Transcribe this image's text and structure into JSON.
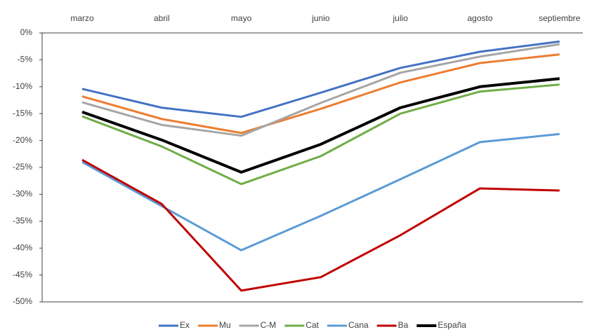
{
  "chart_data": {
    "type": "line",
    "categories": [
      "marzo",
      "abril",
      "mayo",
      "junio",
      "julio",
      "agosto",
      "septiembre"
    ],
    "series": [
      {
        "name": "Ex",
        "color": "#4472c4",
        "values": [
          -10.4,
          -13.9,
          -15.6,
          -11.1,
          -6.5,
          -3.5,
          -1.6
        ]
      },
      {
        "name": "Mu",
        "color": "#ed7d31",
        "values": [
          -11.8,
          -16.0,
          -18.6,
          -14.1,
          -9.2,
          -5.6,
          -4.0
        ]
      },
      {
        "name": "C-M",
        "color": "#a5a5a5",
        "values": [
          -12.9,
          -17.1,
          -19.1,
          -13.0,
          -7.4,
          -4.4,
          -2.1
        ]
      },
      {
        "name": "Cat",
        "color": "#70ad47",
        "values": [
          -15.5,
          -21.1,
          -28.1,
          -22.9,
          -15.0,
          -10.9,
          -9.6
        ]
      },
      {
        "name": "Cana",
        "color": "#5b9bd5",
        "values": [
          -24.0,
          -32.2,
          -40.4,
          -34.0,
          -27.2,
          -20.3,
          -18.8
        ]
      },
      {
        "name": "Ba",
        "color": "#c00000",
        "values": [
          -23.6,
          -31.8,
          -47.9,
          -45.4,
          -37.6,
          -28.9,
          -29.3
        ]
      },
      {
        "name": "España",
        "color": "#000000",
        "values": [
          -14.7,
          -19.9,
          -25.9,
          -20.7,
          -13.9,
          -10.0,
          -8.5
        ]
      }
    ],
    "ylim": [
      -50,
      0
    ],
    "yticks": [
      {
        "value": 0,
        "label": "0%"
      },
      {
        "value": -5,
        "label": "-5%"
      },
      {
        "value": -10,
        "label": "-10%"
      },
      {
        "value": -15,
        "label": "-15%"
      },
      {
        "value": -20,
        "label": "-20%"
      },
      {
        "value": -25,
        "label": "-25%"
      },
      {
        "value": -30,
        "label": "-30%"
      },
      {
        "value": -35,
        "label": "-35%"
      },
      {
        "value": -40,
        "label": "-40%"
      },
      {
        "value": -45,
        "label": "-45%"
      },
      {
        "value": -50,
        "label": "-50%"
      }
    ],
    "grid": false,
    "legend": "bottom"
  }
}
